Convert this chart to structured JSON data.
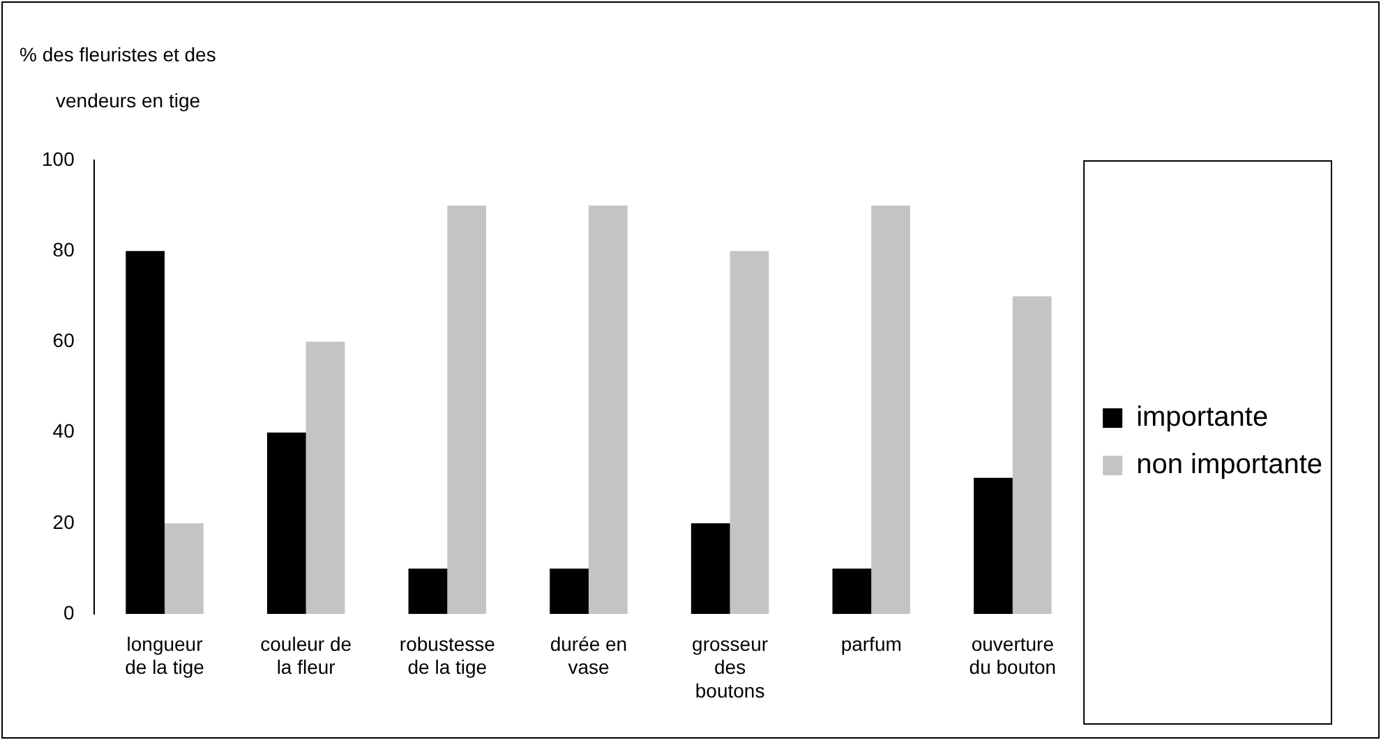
{
  "chart_data": {
    "type": "bar",
    "ylabel": "% des fleuristes et des vendeurs en tige",
    "categories": [
      "longueur de la tige",
      "couleur de la fleur",
      "robustesse de la tige",
      "durée en vase",
      "grosseur des boutons",
      "parfum",
      "ouverture du bouton"
    ],
    "series": [
      {
        "name": "importante",
        "color": "#000000",
        "values": [
          80,
          40,
          10,
          10,
          20,
          10,
          30
        ]
      },
      {
        "name": "non importante",
        "color": "#c4c4c4",
        "values": [
          20,
          60,
          90,
          90,
          80,
          90,
          70
        ]
      }
    ],
    "ylim": [
      0,
      100
    ],
    "yticks": [
      0,
      20,
      40,
      60,
      80,
      100
    ],
    "grid": false,
    "legend": "right"
  }
}
